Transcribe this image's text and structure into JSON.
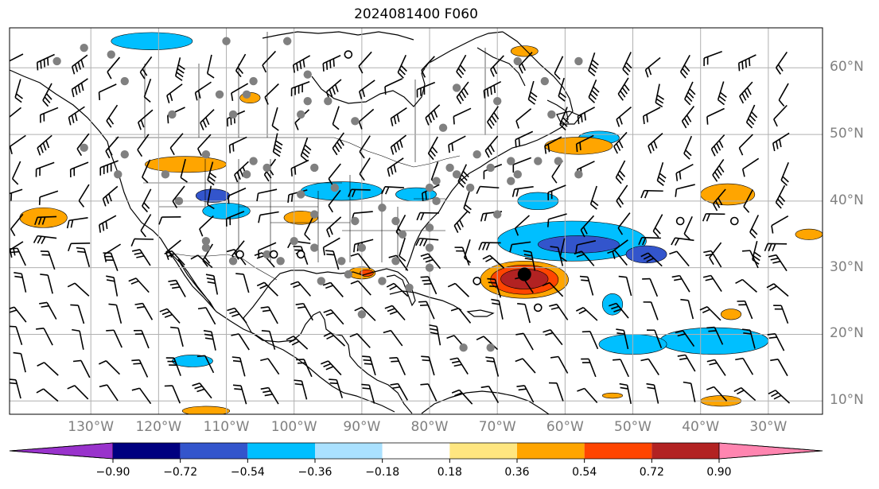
{
  "title": "2024081400 F060",
  "map": {
    "projection": "PlateCarree",
    "lon_range": [
      -142,
      -22
    ],
    "lat_range": [
      8,
      66
    ],
    "gridlines": true,
    "grid_color": "#b0b0b0",
    "label_color": "#808080",
    "lat_ticks": [
      {
        "lat": 60,
        "label": "60°N"
      },
      {
        "lat": 50,
        "label": "50°N"
      },
      {
        "lat": 40,
        "label": "40°N"
      },
      {
        "lat": 30,
        "label": "30°N"
      },
      {
        "lat": 20,
        "label": "20°N"
      },
      {
        "lat": 10,
        "label": "10°N"
      }
    ],
    "lon_ticks": [
      {
        "lon": -130,
        "label": "130°W"
      },
      {
        "lon": -120,
        "label": "120°W"
      },
      {
        "lon": -110,
        "label": "110°W"
      },
      {
        "lon": -100,
        "label": "100°W"
      },
      {
        "lon": -90,
        "label": "90°W"
      },
      {
        "lon": -80,
        "label": "80°W"
      },
      {
        "lon": -70,
        "label": "70°W"
      },
      {
        "lon": -60,
        "label": "60°W"
      },
      {
        "lon": -50,
        "label": "50°W"
      },
      {
        "lon": -40,
        "label": "40°W"
      },
      {
        "lon": -30,
        "label": "30°W"
      }
    ]
  },
  "colorbar": {
    "extend": "both",
    "levels": [
      -0.9,
      -0.72,
      -0.54,
      -0.36,
      -0.18,
      0.18,
      0.36,
      0.54,
      0.72,
      0.9
    ],
    "labels": [
      "−0.90",
      "−0.72",
      "−0.54",
      "−0.36",
      "−0.18",
      "0.18",
      "0.36",
      "0.54",
      "0.72",
      "0.90"
    ],
    "colors": [
      "#9933cc",
      "#000080",
      "#3355cc",
      "#00bfff",
      "#aae1ff",
      "#ffffff",
      "#ffe680",
      "#ffa500",
      "#ff4500",
      "#b22222",
      "#ff85b0"
    ]
  },
  "fields": {
    "negative": [
      {
        "lon": -121,
        "lat": 64,
        "rx": 6,
        "ry": 1.3,
        "color": "#00bfff"
      },
      {
        "lon": -110,
        "lat": 38.5,
        "rx": 3.5,
        "ry": 1.2,
        "color": "#00bfff"
      },
      {
        "lon": -112,
        "lat": 40.8,
        "rx": 2.5,
        "ry": 1,
        "color": "#3355cc"
      },
      {
        "lon": -93,
        "lat": 41.5,
        "rx": 6,
        "ry": 1.4,
        "color": "#00bfff"
      },
      {
        "lon": -82,
        "lat": 41,
        "rx": 3,
        "ry": 1,
        "color": "#00bfff"
      },
      {
        "lon": -55,
        "lat": 49.5,
        "rx": 3,
        "ry": 1,
        "color": "#00bfff"
      },
      {
        "lon": -59,
        "lat": 34,
        "rx": 11,
        "ry": 3,
        "color": "#00bfff"
      },
      {
        "lon": -58,
        "lat": 33.5,
        "rx": 6,
        "ry": 1.3,
        "color": "#3355cc"
      },
      {
        "lon": -48,
        "lat": 32,
        "rx": 3,
        "ry": 1.3,
        "color": "#3355cc"
      },
      {
        "lon": -64,
        "lat": 40,
        "rx": 3,
        "ry": 1.3,
        "color": "#00bfff"
      },
      {
        "lon": -38,
        "lat": 19,
        "rx": 8,
        "ry": 2,
        "color": "#00bfff"
      },
      {
        "lon": -50,
        "lat": 18.5,
        "rx": 5,
        "ry": 1.5,
        "color": "#00bfff"
      },
      {
        "lon": -115,
        "lat": 16,
        "rx": 3,
        "ry": 0.9,
        "color": "#00bfff"
      },
      {
        "lon": -53,
        "lat": 24.5,
        "rx": 1.5,
        "ry": 1.6,
        "color": "#00bfff"
      }
    ],
    "positive": [
      {
        "lon": -137,
        "lat": 37.5,
        "rx": 3.5,
        "ry": 1.5,
        "color": "#ffa500"
      },
      {
        "lon": -116,
        "lat": 45.5,
        "rx": 6,
        "ry": 1.2,
        "color": "#ffa500"
      },
      {
        "lon": -99,
        "lat": 37.5,
        "rx": 2.5,
        "ry": 1,
        "color": "#ffa500"
      },
      {
        "lon": -90,
        "lat": 29.2,
        "rx": 2,
        "ry": 0.9,
        "color": "#ffa500"
      },
      {
        "lon": -89.3,
        "lat": 29.2,
        "rx": 1,
        "ry": 0.5,
        "color": "#ff4500"
      },
      {
        "lon": -106.5,
        "lat": 55.5,
        "rx": 1.5,
        "ry": 0.8,
        "color": "#ffa500"
      },
      {
        "lon": -58,
        "lat": 48.3,
        "rx": 5,
        "ry": 1.3,
        "color": "#ffa500"
      },
      {
        "lon": -36,
        "lat": 41,
        "rx": 4,
        "ry": 1.6,
        "color": "#ffa500"
      },
      {
        "lon": -24,
        "lat": 35,
        "rx": 2,
        "ry": 0.8,
        "color": "#ffa500"
      },
      {
        "lon": -37,
        "lat": 10,
        "rx": 3,
        "ry": 0.8,
        "color": "#ffa500"
      },
      {
        "lon": -113,
        "lat": 8.5,
        "rx": 3.5,
        "ry": 0.7,
        "color": "#ffa500"
      },
      {
        "lon": -66,
        "lat": 62.5,
        "rx": 2,
        "ry": 0.8,
        "color": "#ffa500"
      },
      {
        "lon": -35.5,
        "lat": 23,
        "rx": 1.5,
        "ry": 0.8,
        "color": "#ffa500"
      },
      {
        "lon": -53,
        "lat": 10.8,
        "rx": 1.5,
        "ry": 0.4,
        "color": "#ffa500"
      }
    ],
    "storm_core": [
      {
        "lon": -66,
        "lat": 28.2,
        "rx": 6.5,
        "ry": 2.8,
        "color": "#ffa500"
      },
      {
        "lon": -66,
        "lat": 28.2,
        "rx": 5,
        "ry": 2.2,
        "color": "#ff4500"
      },
      {
        "lon": -66,
        "lat": 28.3,
        "rx": 3.5,
        "ry": 1.5,
        "color": "#b22222"
      }
    ]
  },
  "markers": {
    "storm_center": {
      "lon": -66,
      "lat": 29
    },
    "gray_dots": [
      [
        -131,
        63
      ],
      [
        -127,
        62
      ],
      [
        -125,
        58
      ],
      [
        -135,
        61
      ],
      [
        -110,
        64
      ],
      [
        -101,
        64
      ],
      [
        -98,
        59
      ],
      [
        -106,
        58
      ],
      [
        -109,
        53
      ],
      [
        -118,
        53
      ],
      [
        -111,
        56
      ],
      [
        -107,
        56
      ],
      [
        -98,
        55
      ],
      [
        -95,
        55
      ],
      [
        -99,
        53
      ],
      [
        -91,
        52
      ],
      [
        -119,
        44
      ],
      [
        -125,
        47
      ],
      [
        -126,
        44
      ],
      [
        -131,
        48
      ],
      [
        -106,
        46
      ],
      [
        -113,
        47
      ],
      [
        -117,
        40
      ],
      [
        -107,
        44
      ],
      [
        -99,
        41
      ],
      [
        -97,
        45
      ],
      [
        -104,
        45
      ],
      [
        -94,
        42
      ],
      [
        -97,
        38
      ],
      [
        -87,
        39
      ],
      [
        -91,
        37
      ],
      [
        -85,
        37
      ],
      [
        -80,
        42
      ],
      [
        -76,
        44
      ],
      [
        -74,
        42
      ],
      [
        -79,
        40
      ],
      [
        -80,
        36
      ],
      [
        -77,
        45
      ],
      [
        -71,
        45
      ],
      [
        -67,
        44
      ],
      [
        -68,
        46
      ],
      [
        -61,
        46
      ],
      [
        -58,
        44
      ],
      [
        -70,
        38
      ],
      [
        -68,
        43
      ],
      [
        -80,
        33
      ],
      [
        -85,
        31
      ],
      [
        -90,
        33
      ],
      [
        -97,
        33
      ],
      [
        -104,
        32
      ],
      [
        -109,
        31
      ],
      [
        -113,
        34
      ],
      [
        -113,
        33
      ],
      [
        -102,
        31
      ],
      [
        -96,
        28
      ],
      [
        -92,
        29
      ],
      [
        -87,
        28
      ],
      [
        -83,
        27
      ],
      [
        -90,
        23
      ],
      [
        -80,
        30
      ],
      [
        -84,
        35
      ],
      [
        -100,
        34
      ],
      [
        -93,
        31
      ],
      [
        -75,
        18
      ],
      [
        -71,
        18
      ],
      [
        -67,
        61
      ],
      [
        -62,
        53
      ],
      [
        -78,
        51
      ],
      [
        -73,
        47
      ],
      [
        -58,
        61
      ],
      [
        -63,
        58
      ],
      [
        -76,
        57
      ],
      [
        -70,
        55
      ],
      [
        -79,
        43
      ],
      [
        -64,
        46
      ]
    ],
    "open_circles": [
      [
        -92,
        62
      ],
      [
        -108,
        32
      ],
      [
        -103,
        32
      ],
      [
        -99,
        32
      ],
      [
        -73,
        28
      ],
      [
        -64,
        24
      ],
      [
        -43,
        37
      ],
      [
        -35,
        37
      ]
    ]
  }
}
